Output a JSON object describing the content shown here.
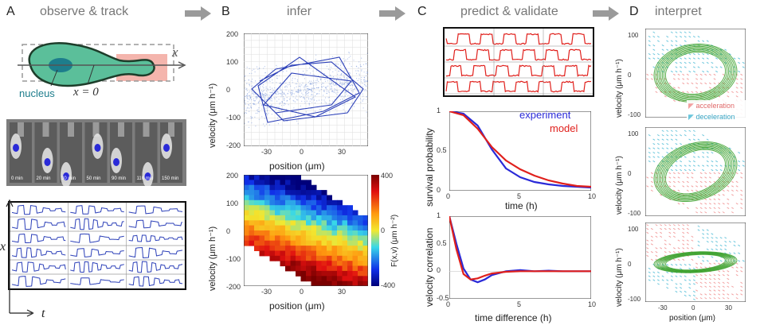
{
  "panels": [
    {
      "letter": "A",
      "title": "observe & track"
    },
    {
      "letter": "B",
      "title": "infer"
    },
    {
      "letter": "C",
      "title": "predict & validate"
    },
    {
      "letter": "D",
      "title": "interpret"
    }
  ],
  "panelA": {
    "x_axis_symbol": "x",
    "nucleus_label": "nucleus",
    "x0_label": "x = 0",
    "time_labels": [
      "0 min",
      "20 min",
      "30 min",
      "50 min",
      "90 min",
      "110 min",
      "150 min"
    ],
    "grid_x_symbol": "x",
    "grid_t_symbol": "t"
  },
  "panelB": {
    "top": {
      "ylabel": "velocity (μm h⁻¹)",
      "xlabel": "position (μm)",
      "yticks": [
        "200",
        "100",
        "0",
        "-100",
        "-200"
      ],
      "xticks": [
        "-30",
        "0",
        "30"
      ]
    },
    "bottom": {
      "ylabel": "velocity (μm h⁻¹)",
      "xlabel": "position (μm)",
      "yticks": [
        "200",
        "100",
        "0",
        "-100",
        "-200"
      ],
      "xticks": [
        "-30",
        "0",
        "30"
      ],
      "colorbar_label": "F(x,v) (μm h⁻²)",
      "colorbar_ticks": [
        "400",
        "0",
        "-400"
      ]
    }
  },
  "panelC": {
    "survival": {
      "ylabel": "survival probability",
      "xlabel": "time (h)",
      "yticks": [
        "1",
        "0.5",
        "0"
      ],
      "xticks": [
        "0",
        "5",
        "10"
      ],
      "legend": [
        "experiment",
        "model"
      ]
    },
    "correlation": {
      "ylabel": "velocity correlation",
      "xlabel": "time difference (h)",
      "yticks": [
        "1",
        "0.5",
        "0",
        "-0.5"
      ],
      "xticks": [
        "0",
        "5",
        "10"
      ]
    }
  },
  "panelD": {
    "ylabel": "velocity (μm h⁻¹)",
    "xlabel": "position (μm)",
    "plot1_yticks": [
      "100",
      "0",
      "-100"
    ],
    "plot2_yticks": [
      "100",
      "0",
      "-100"
    ],
    "plot3_yticks": [
      "100",
      "0",
      "-100"
    ],
    "xticks": [
      "-30",
      "0",
      "30"
    ],
    "legend": [
      "acceleration",
      "deceleration"
    ]
  },
  "colors": {
    "experiment": "#2a2ad8",
    "model": "#e0201c",
    "trajectory": "#2b3fb8",
    "flow": "#3aa02a",
    "accel": "#f2a0a0",
    "decel": "#6ac6dc",
    "arrow": "#9a9a9a"
  },
  "chart_data": [
    {
      "type": "line",
      "title": "",
      "xlabel": "time (h)",
      "ylabel": "survival probability",
      "xlim": [
        0,
        10
      ],
      "ylim": [
        0,
        1
      ],
      "series": [
        {
          "name": "experiment",
          "x": [
            0,
            1,
            2,
            3,
            4,
            5,
            6,
            7,
            8,
            9,
            10
          ],
          "values": [
            1,
            0.97,
            0.82,
            0.52,
            0.28,
            0.17,
            0.11,
            0.08,
            0.06,
            0.05,
            0.04
          ]
        },
        {
          "name": "model",
          "x": [
            0,
            1,
            2,
            3,
            4,
            5,
            6,
            7,
            8,
            9,
            10
          ],
          "values": [
            1,
            0.95,
            0.78,
            0.55,
            0.38,
            0.27,
            0.19,
            0.13,
            0.09,
            0.06,
            0.05
          ]
        }
      ]
    },
    {
      "type": "line",
      "title": "",
      "xlabel": "time difference (h)",
      "ylabel": "velocity correlation",
      "xlim": [
        0,
        10
      ],
      "ylim": [
        -0.5,
        1
      ],
      "series": [
        {
          "name": "experiment",
          "x": [
            0,
            0.5,
            1,
            1.5,
            2,
            2.5,
            3,
            4,
            5,
            6,
            7,
            8,
            9,
            10
          ],
          "values": [
            1,
            0.5,
            0.05,
            -0.15,
            -0.2,
            -0.15,
            -0.07,
            0,
            0.02,
            0,
            0.01,
            0,
            0,
            0
          ]
        },
        {
          "name": "model",
          "x": [
            0,
            0.5,
            1,
            1.5,
            2,
            2.5,
            3,
            4,
            5,
            6,
            7,
            8,
            9,
            10
          ],
          "values": [
            1,
            0.4,
            -0.05,
            -0.15,
            -0.13,
            -0.08,
            -0.04,
            -0.01,
            0,
            0,
            0,
            0,
            0,
            0
          ]
        }
      ]
    }
  ]
}
